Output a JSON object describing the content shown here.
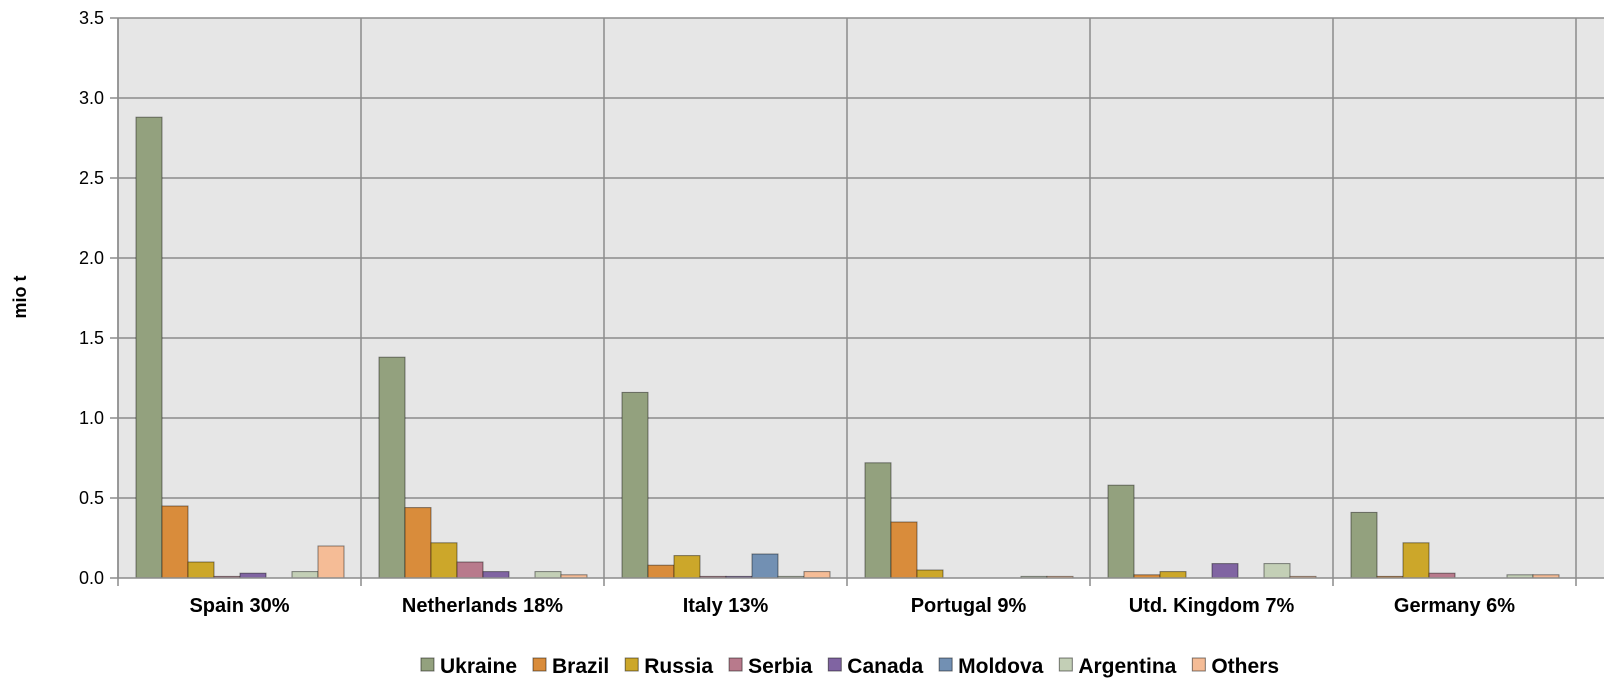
{
  "chart_data": {
    "type": "bar",
    "title": "",
    "xlabel": "",
    "ylabel": "mio t",
    "ylim": [
      0,
      3.5
    ],
    "yticks": [
      "0.0",
      "0.5",
      "1.0",
      "1.5",
      "2.0",
      "2.5",
      "3.0",
      "3.5"
    ],
    "grid": true,
    "legend_position": "bottom",
    "categories": [
      "Spain 30%",
      "Netherlands 18%",
      "Italy 13%",
      "Portugal 9%",
      "Utd. Kingdom 7%",
      "Germany 6%"
    ],
    "series": [
      {
        "name": "Ukraine",
        "color": "#93a17e",
        "values": [
          2.88,
          1.38,
          1.16,
          0.72,
          0.58,
          0.41
        ]
      },
      {
        "name": "Brazil",
        "color": "#d98c3b",
        "values": [
          0.45,
          0.44,
          0.08,
          0.35,
          0.02,
          0.01
        ]
      },
      {
        "name": "Russia",
        "color": "#cca72a",
        "values": [
          0.1,
          0.22,
          0.14,
          0.05,
          0.04,
          0.22
        ]
      },
      {
        "name": "Serbia",
        "color": "#b87a8c",
        "values": [
          0.01,
          0.1,
          0.01,
          0.0,
          0.0,
          0.03
        ]
      },
      {
        "name": "Canada",
        "color": "#8064a2",
        "values": [
          0.03,
          0.04,
          0.01,
          0.0,
          0.09,
          0.0
        ]
      },
      {
        "name": "Moldova",
        "color": "#7290b3",
        "values": [
          0.0,
          0.0,
          0.15,
          0.0,
          0.0,
          0.0
        ]
      },
      {
        "name": "Argentina",
        "color": "#c3cfb6",
        "values": [
          0.04,
          0.04,
          0.01,
          0.01,
          0.09,
          0.02
        ]
      },
      {
        "name": "Others",
        "color": "#f5bc96",
        "values": [
          0.2,
          0.02,
          0.04,
          0.01,
          0.01,
          0.02
        ]
      }
    ]
  }
}
